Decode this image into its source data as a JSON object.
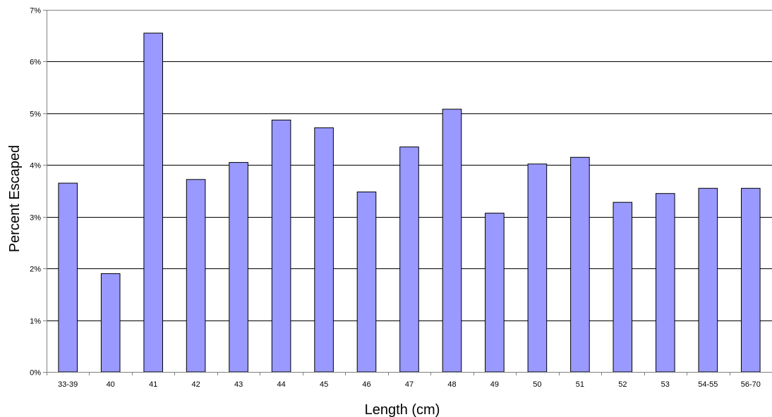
{
  "chart_data": {
    "type": "bar",
    "title": "",
    "xlabel": "Length (cm)",
    "ylabel": "Percent Escaped",
    "categories": [
      "33-39",
      "40",
      "41",
      "42",
      "43",
      "44",
      "45",
      "46",
      "47",
      "48",
      "49",
      "50",
      "51",
      "52",
      "53",
      "54-55",
      "56-70"
    ],
    "values": [
      3.65,
      1.9,
      6.55,
      3.72,
      4.05,
      4.87,
      4.72,
      3.48,
      4.35,
      5.08,
      3.07,
      4.02,
      4.15,
      3.28,
      3.45,
      3.55,
      3.55
    ],
    "ylim": [
      0,
      7
    ],
    "yticks": [
      "0%",
      "1%",
      "2%",
      "3%",
      "4%",
      "5%",
      "6%",
      "7%"
    ],
    "grid": true,
    "legend": "none",
    "colors": {
      "bar_fill": "#9999ff",
      "bar_stroke": "#000000",
      "grid": "#000000",
      "axis": "#808080"
    }
  }
}
